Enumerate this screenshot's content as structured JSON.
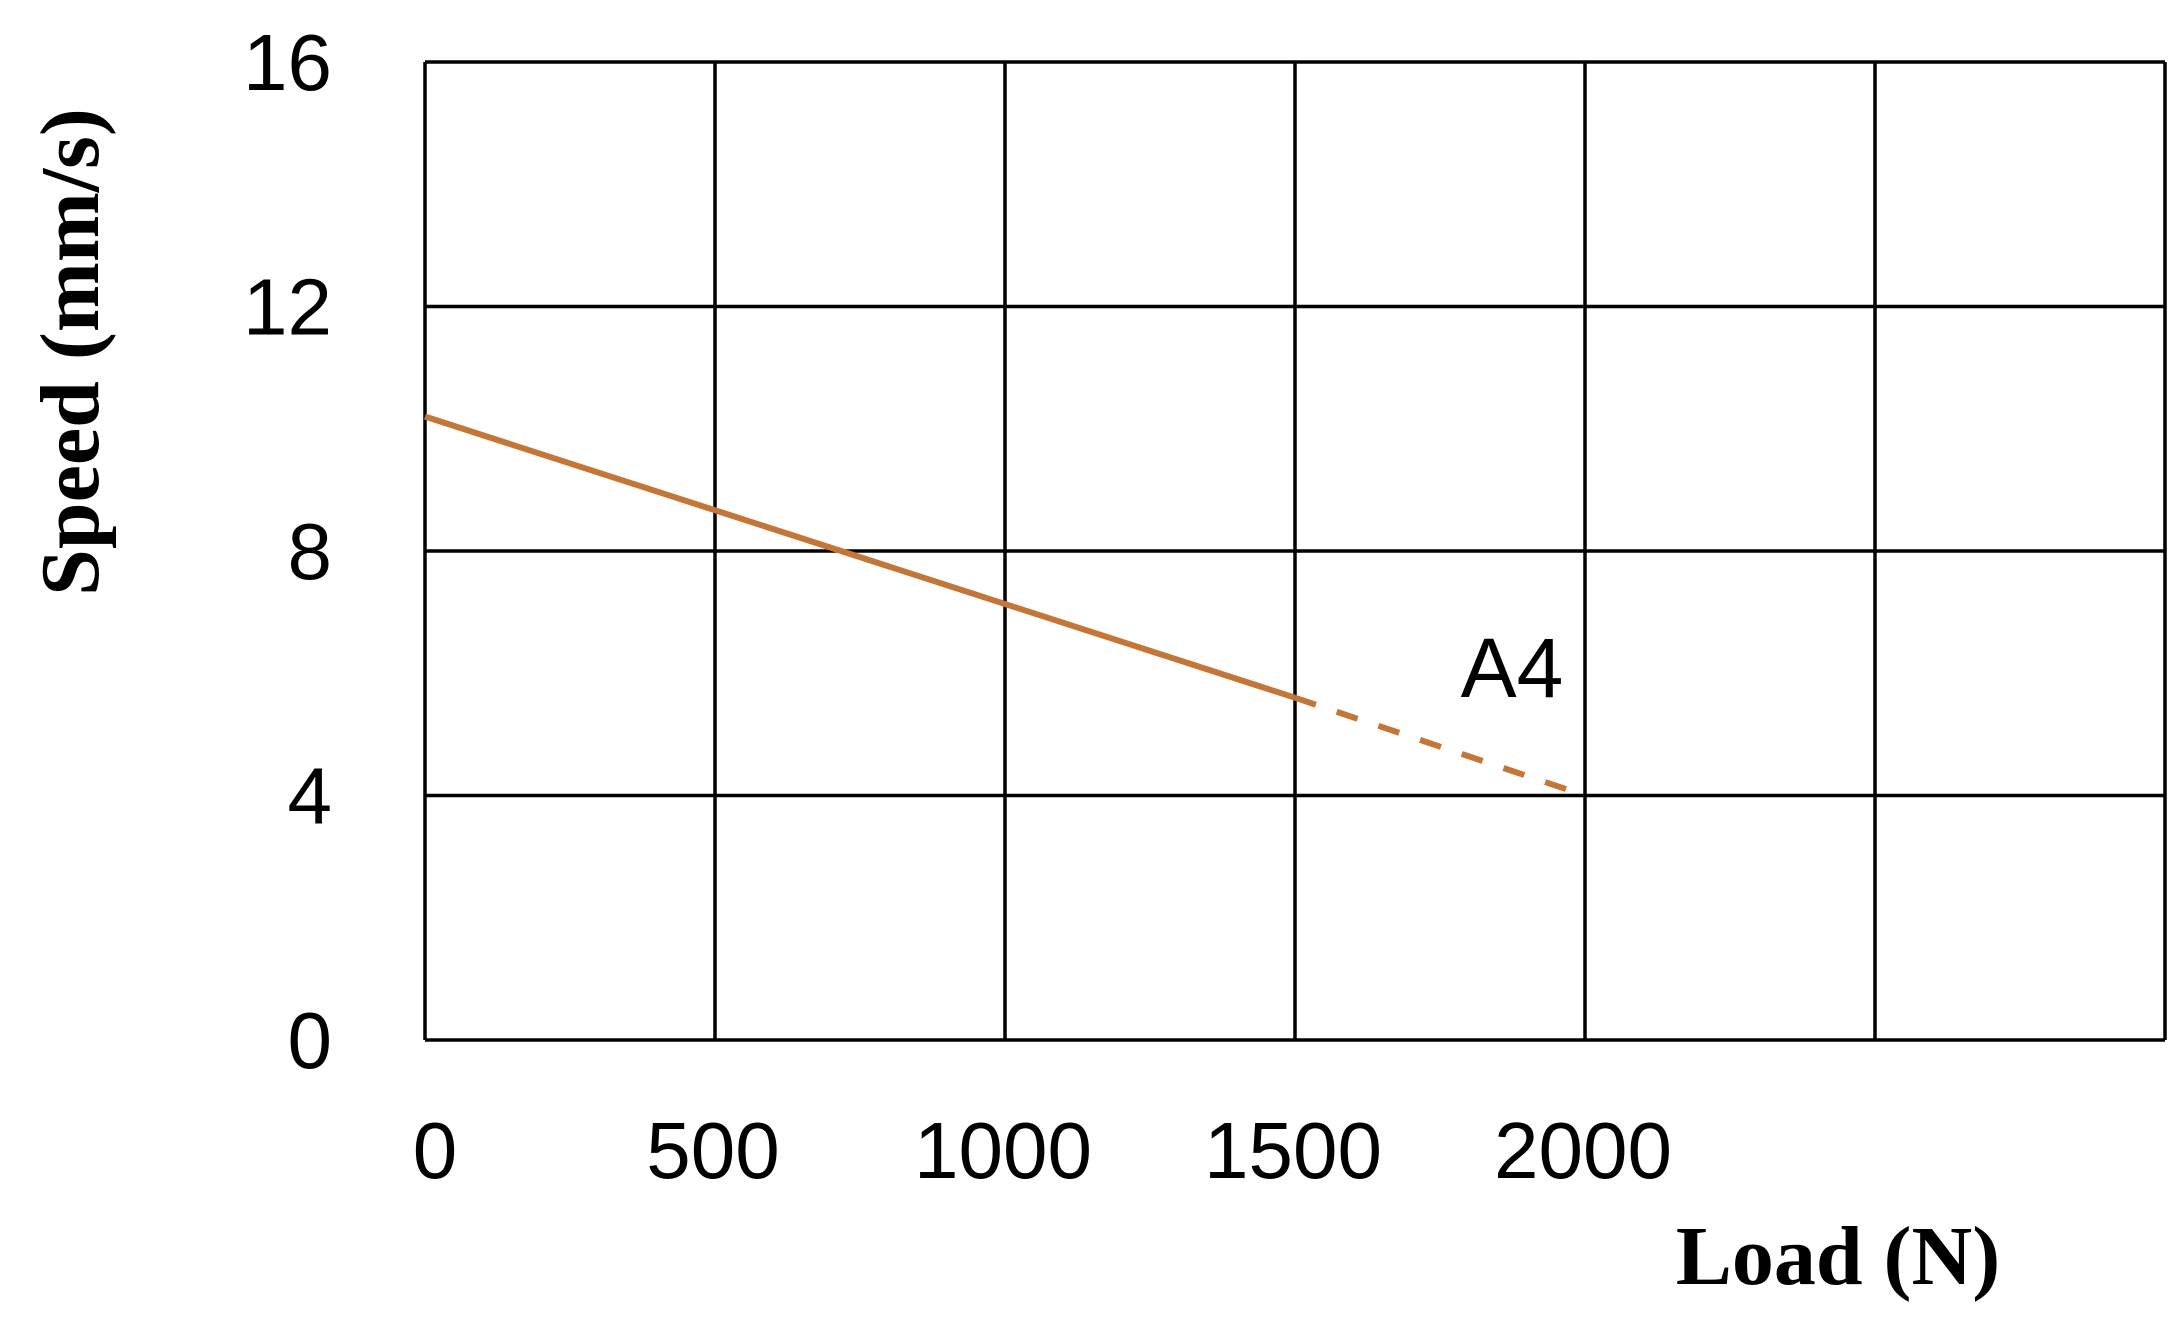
{
  "chart_data": {
    "type": "line",
    "xlabel": "Load (N)",
    "ylabel": "Speed (mm/s)",
    "xlim": [
      0,
      3000
    ],
    "ylim": [
      0,
      16
    ],
    "x_ticks": [
      0,
      500,
      1000,
      1500,
      2000
    ],
    "y_ticks": [
      0,
      4,
      8,
      12,
      16
    ],
    "x_gridlines": [
      0,
      500,
      1000,
      1500,
      2000,
      2500,
      3000
    ],
    "y_gridlines": [
      0,
      4,
      8,
      12,
      16
    ],
    "grid": true,
    "series": [
      {
        "name": "A4",
        "color": "#c47638",
        "segments": [
          {
            "style": "solid",
            "points": [
              [
                0,
                10.2
              ],
              [
                1500,
                5.6
              ]
            ]
          },
          {
            "style": "dashed",
            "points": [
              [
                1500,
                5.6
              ],
              [
                2000,
                4.0
              ]
            ]
          }
        ]
      }
    ]
  }
}
